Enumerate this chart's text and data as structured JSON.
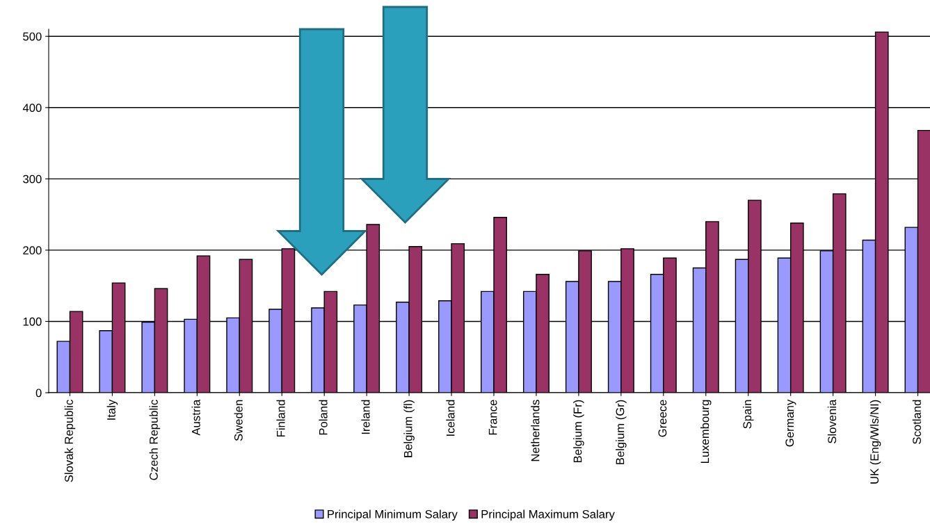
{
  "chart_data": {
    "type": "bar",
    "categories": [
      "Slovak Republic",
      "Italy",
      "Czech Republic",
      "Austria",
      "Sweden",
      "Finland",
      "Poland",
      "Ireland",
      "Belgium (fl)",
      "Iceland",
      "France",
      "Netherlands",
      "Belgium (Fr)",
      "Belgium (Gr)",
      "Greece",
      "Luxembourg",
      "Spain",
      "Germany",
      "Slovenia",
      "UK (Eng/Wls/NI)",
      "Scotland"
    ],
    "series": [
      {
        "name": "Principal Minimum Salary",
        "color": "#9999ff",
        "values": [
          72,
          87,
          99,
          103,
          105,
          117,
          119,
          123,
          127,
          129,
          142,
          142,
          156,
          156,
          166,
          175,
          187,
          189,
          199,
          214,
          232
        ]
      },
      {
        "name": "Principal Maximum Salary",
        "color": "#993366",
        "values": [
          114,
          154,
          146,
          192,
          187,
          202,
          142,
          236,
          205,
          209,
          246,
          166,
          199,
          202,
          189,
          240,
          270,
          238,
          279,
          506,
          368
        ]
      }
    ],
    "ylim": [
      0,
      510
    ],
    "yticks": [
      0,
      100,
      200,
      300,
      400,
      500
    ],
    "grid": "y",
    "legend": "bottom"
  }
}
